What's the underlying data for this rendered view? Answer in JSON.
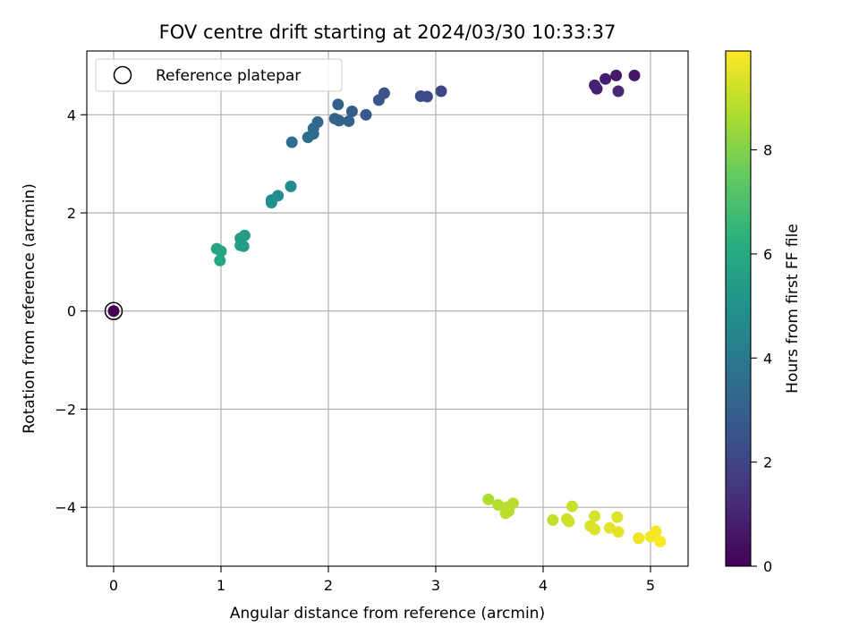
{
  "chart_data": {
    "type": "scatter",
    "title": "FOV centre drift starting at 2024/03/30 10:33:37",
    "xlabel": "Angular distance from reference (arcmin)",
    "ylabel": "Rotation from reference (arcmin)",
    "xlim": [
      -0.25,
      5.35
    ],
    "ylim": [
      -5.2,
      5.3
    ],
    "xticks": [
      0,
      1,
      2,
      3,
      4,
      5
    ],
    "xtick_labels": [
      "0",
      "1",
      "2",
      "3",
      "4",
      "5"
    ],
    "yticks": [
      -4,
      -2,
      0,
      2,
      4
    ],
    "ytick_labels": [
      "−4",
      "−2",
      "0",
      "2",
      "4"
    ],
    "grid": true,
    "legend": {
      "position": "top-left",
      "entries": [
        "Reference platepar"
      ]
    },
    "colorbar": {
      "label": "Hours from first FF file",
      "colormap": "viridis",
      "range": [
        0,
        9.9
      ],
      "ticks": [
        0,
        2,
        4,
        6,
        8
      ],
      "tick_labels": [
        "0",
        "2",
        "4",
        "6",
        "8"
      ]
    },
    "reference_point": {
      "x": 0,
      "y": 0,
      "hours": 0
    },
    "points": [
      {
        "x": 4.85,
        "y": 4.8,
        "hours": 0.6
      },
      {
        "x": 4.68,
        "y": 4.8,
        "hours": 0.7
      },
      {
        "x": 4.58,
        "y": 4.73,
        "hours": 0.8
      },
      {
        "x": 4.48,
        "y": 4.6,
        "hours": 0.9
      },
      {
        "x": 4.5,
        "y": 4.53,
        "hours": 0.95
      },
      {
        "x": 4.7,
        "y": 4.48,
        "hours": 1.1
      },
      {
        "x": 3.05,
        "y": 4.48,
        "hours": 2.1
      },
      {
        "x": 2.92,
        "y": 4.37,
        "hours": 2.2
      },
      {
        "x": 2.86,
        "y": 4.38,
        "hours": 2.25
      },
      {
        "x": 2.52,
        "y": 4.44,
        "hours": 2.5
      },
      {
        "x": 2.47,
        "y": 4.3,
        "hours": 2.6
      },
      {
        "x": 2.35,
        "y": 4.0,
        "hours": 2.8
      },
      {
        "x": 2.22,
        "y": 4.07,
        "hours": 2.9
      },
      {
        "x": 2.09,
        "y": 4.21,
        "hours": 3.0
      },
      {
        "x": 2.06,
        "y": 3.92,
        "hours": 3.05
      },
      {
        "x": 2.1,
        "y": 3.88,
        "hours": 3.1
      },
      {
        "x": 2.19,
        "y": 3.87,
        "hours": 3.15
      },
      {
        "x": 1.9,
        "y": 3.85,
        "hours": 3.3
      },
      {
        "x": 1.86,
        "y": 3.72,
        "hours": 3.4
      },
      {
        "x": 1.86,
        "y": 3.61,
        "hours": 3.45
      },
      {
        "x": 1.81,
        "y": 3.54,
        "hours": 3.5
      },
      {
        "x": 1.66,
        "y": 3.44,
        "hours": 3.6
      },
      {
        "x": 1.65,
        "y": 2.54,
        "hours": 4.7
      },
      {
        "x": 1.53,
        "y": 2.35,
        "hours": 4.8
      },
      {
        "x": 1.47,
        "y": 2.26,
        "hours": 4.85
      },
      {
        "x": 1.47,
        "y": 2.21,
        "hours": 4.9
      },
      {
        "x": 1.22,
        "y": 1.54,
        "hours": 5.4
      },
      {
        "x": 1.18,
        "y": 1.48,
        "hours": 5.45
      },
      {
        "x": 1.18,
        "y": 1.34,
        "hours": 5.5
      },
      {
        "x": 1.21,
        "y": 1.32,
        "hours": 5.55
      },
      {
        "x": 0.96,
        "y": 1.27,
        "hours": 5.7
      },
      {
        "x": 1.0,
        "y": 1.22,
        "hours": 5.75
      },
      {
        "x": 0.99,
        "y": 1.03,
        "hours": 5.85
      },
      {
        "x": 3.49,
        "y": -3.84,
        "hours": 8.7
      },
      {
        "x": 3.58,
        "y": -3.95,
        "hours": 8.75
      },
      {
        "x": 3.72,
        "y": -3.92,
        "hours": 8.8
      },
      {
        "x": 3.66,
        "y": -4.0,
        "hours": 8.85
      },
      {
        "x": 3.68,
        "y": -4.08,
        "hours": 8.9
      },
      {
        "x": 3.65,
        "y": -4.12,
        "hours": 8.9
      },
      {
        "x": 4.27,
        "y": -3.98,
        "hours": 9.1
      },
      {
        "x": 4.09,
        "y": -4.26,
        "hours": 9.05
      },
      {
        "x": 4.22,
        "y": -4.24,
        "hours": 9.15
      },
      {
        "x": 4.24,
        "y": -4.29,
        "hours": 9.2
      },
      {
        "x": 4.48,
        "y": -4.18,
        "hours": 9.3
      },
      {
        "x": 4.69,
        "y": -4.2,
        "hours": 9.4
      },
      {
        "x": 4.44,
        "y": -4.38,
        "hours": 9.35
      },
      {
        "x": 4.48,
        "y": -4.45,
        "hours": 9.4
      },
      {
        "x": 4.62,
        "y": -4.42,
        "hours": 9.5
      },
      {
        "x": 4.7,
        "y": -4.5,
        "hours": 9.55
      },
      {
        "x": 4.89,
        "y": -4.63,
        "hours": 9.7
      },
      {
        "x": 5.0,
        "y": -4.6,
        "hours": 9.75
      },
      {
        "x": 5.05,
        "y": -4.49,
        "hours": 9.8
      },
      {
        "x": 5.09,
        "y": -4.7,
        "hours": 9.85
      }
    ]
  }
}
